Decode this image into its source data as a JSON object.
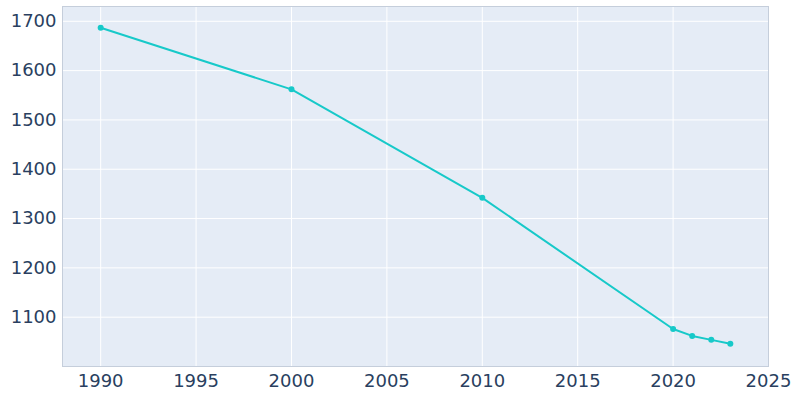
{
  "chart_data": {
    "type": "line",
    "x": [
      1990,
      2000,
      2010,
      2020,
      2021,
      2022,
      2023
    ],
    "values": [
      1687,
      1562,
      1342,
      1076,
      1062,
      1054,
      1046
    ],
    "color": "#17c9c9",
    "marker": "circle",
    "xlim": [
      1988,
      2025
    ],
    "xticks": [
      1990,
      1995,
      2000,
      2005,
      2010,
      2015,
      2020,
      2025
    ],
    "ylim": [
      1000,
      1730
    ],
    "yticks": [
      1100,
      1200,
      1300,
      1400,
      1500,
      1600,
      1700
    ],
    "grid": true
  }
}
